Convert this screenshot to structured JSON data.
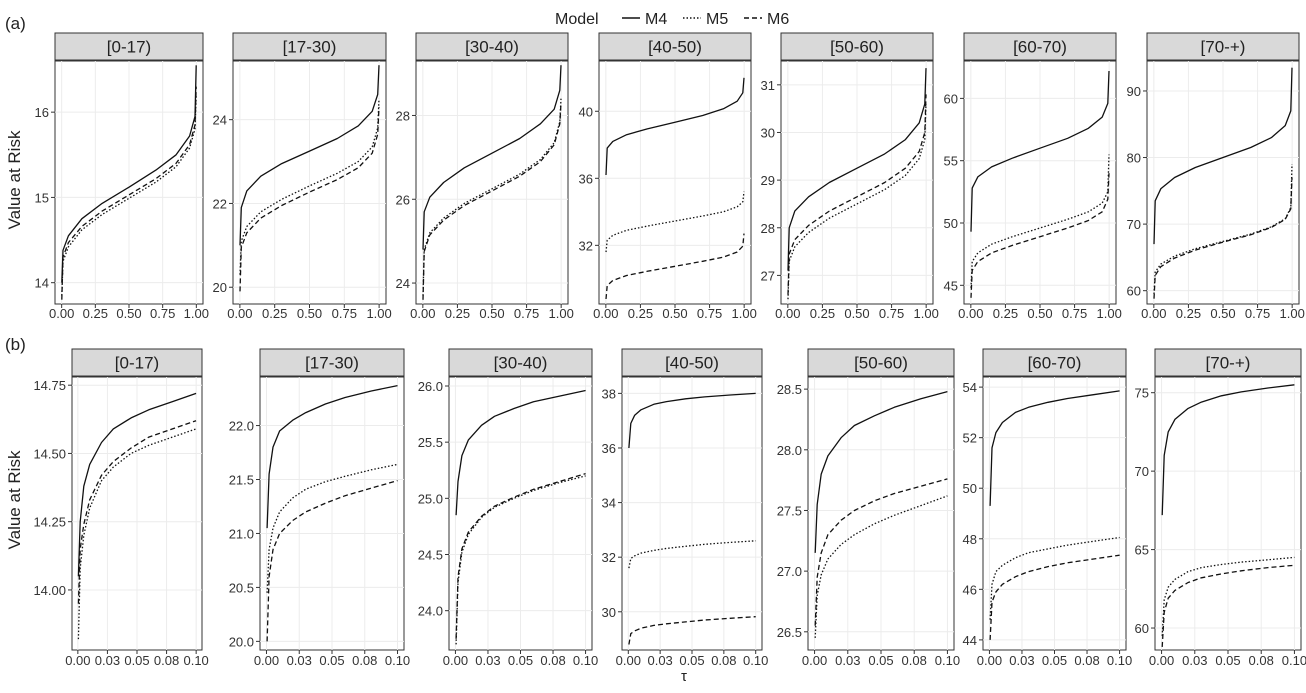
{
  "legend": {
    "title": "Model",
    "items": [
      "M4",
      "M5",
      "M6"
    ]
  },
  "x_axis_label": "τ",
  "chart_data": [
    {
      "row": "(a)",
      "type": "line",
      "ylabel": "Value at Risk",
      "xlabel": "τ",
      "xlim": [
        0,
        1
      ],
      "xticks": [
        "0.00",
        "0.25",
        "0.50",
        "0.75",
        "1.00"
      ],
      "xtick_values": [
        0,
        0.25,
        0.5,
        0.75,
        1.0
      ],
      "series_names": [
        "M4",
        "M5",
        "M6"
      ],
      "x": [
        0.001,
        0.01,
        0.05,
        0.15,
        0.3,
        0.5,
        0.7,
        0.85,
        0.95,
        0.99,
        0.999
      ],
      "panels": [
        {
          "title": "[0-17)",
          "ylim": [
            13.75,
            16.6
          ],
          "yticks": [
            14,
            15,
            16
          ],
          "series": [
            {
              "name": "M4",
              "values": [
                14.0,
                14.38,
                14.55,
                14.75,
                14.93,
                15.12,
                15.32,
                15.5,
                15.72,
                15.95,
                16.55
              ]
            },
            {
              "name": "M5",
              "values": [
                13.85,
                14.25,
                14.42,
                14.62,
                14.8,
                14.99,
                15.18,
                15.36,
                15.58,
                15.8,
                16.2
              ]
            },
            {
              "name": "M6",
              "values": [
                13.8,
                14.3,
                14.47,
                14.66,
                14.84,
                15.03,
                15.22,
                15.4,
                15.62,
                15.85,
                16.3
              ]
            }
          ]
        },
        {
          "title": "[17-30)",
          "ylim": [
            19.6,
            25.4
          ],
          "yticks": [
            20,
            22,
            24
          ],
          "series": [
            {
              "name": "M4",
              "values": [
                21.0,
                21.9,
                22.3,
                22.65,
                22.95,
                23.25,
                23.55,
                23.85,
                24.2,
                24.6,
                25.3
              ]
            },
            {
              "name": "M5",
              "values": [
                20.3,
                21.1,
                21.45,
                21.8,
                22.1,
                22.42,
                22.72,
                23.0,
                23.35,
                23.8,
                24.5
              ]
            },
            {
              "name": "M6",
              "values": [
                19.9,
                20.95,
                21.3,
                21.65,
                21.95,
                22.27,
                22.57,
                22.85,
                23.2,
                23.65,
                24.3
              ]
            }
          ]
        },
        {
          "title": "[30-40)",
          "ylim": [
            23.5,
            29.3
          ],
          "yticks": [
            24,
            26,
            28
          ],
          "series": [
            {
              "name": "M4",
              "values": [
                24.8,
                25.7,
                26.05,
                26.4,
                26.75,
                27.1,
                27.45,
                27.8,
                28.15,
                28.6,
                29.2
              ]
            },
            {
              "name": "M5",
              "values": [
                23.7,
                24.8,
                25.2,
                25.55,
                25.9,
                26.25,
                26.6,
                26.95,
                27.35,
                27.85,
                28.4
              ]
            },
            {
              "name": "M6",
              "values": [
                23.6,
                24.75,
                25.15,
                25.5,
                25.85,
                26.2,
                26.55,
                26.9,
                27.3,
                27.8,
                28.3
              ]
            }
          ]
        },
        {
          "title": "[40-50)",
          "ylim": [
            28.5,
            43.0
          ],
          "yticks": [
            32,
            36,
            40
          ],
          "series": [
            {
              "name": "M4",
              "values": [
                36.2,
                37.8,
                38.2,
                38.6,
                38.95,
                39.35,
                39.75,
                40.15,
                40.6,
                41.1,
                42.0
              ]
            },
            {
              "name": "M5",
              "values": [
                31.6,
                32.3,
                32.6,
                32.9,
                33.15,
                33.45,
                33.75,
                34.0,
                34.3,
                34.6,
                35.2
              ]
            },
            {
              "name": "M6",
              "values": [
                28.8,
                29.6,
                29.9,
                30.2,
                30.45,
                30.75,
                31.05,
                31.3,
                31.6,
                31.95,
                32.7
              ]
            }
          ]
        },
        {
          "title": "[50-60)",
          "ylim": [
            26.4,
            31.5
          ],
          "yticks": [
            27,
            28,
            29,
            30,
            31
          ],
          "series": [
            {
              "name": "M4",
              "values": [
                27.1,
                28.0,
                28.35,
                28.65,
                28.95,
                29.25,
                29.55,
                29.85,
                30.2,
                30.6,
                31.35
              ]
            },
            {
              "name": "M5",
              "values": [
                26.5,
                27.3,
                27.6,
                27.9,
                28.2,
                28.5,
                28.8,
                29.1,
                29.45,
                29.85,
                30.6
              ]
            },
            {
              "name": "M6",
              "values": [
                26.6,
                27.45,
                27.75,
                28.05,
                28.35,
                28.65,
                28.95,
                29.25,
                29.6,
                30.0,
                30.8
              ]
            }
          ]
        },
        {
          "title": "[60-70)",
          "ylim": [
            43.5,
            63.0
          ],
          "yticks": [
            45,
            50,
            55,
            60
          ],
          "series": [
            {
              "name": "M4",
              "values": [
                49.3,
                52.8,
                53.7,
                54.5,
                55.2,
                56.0,
                56.8,
                57.6,
                58.5,
                59.6,
                62.2
              ]
            },
            {
              "name": "M5",
              "values": [
                44.8,
                46.9,
                47.6,
                48.3,
                48.9,
                49.6,
                50.3,
                50.9,
                51.6,
                52.5,
                55.5
              ]
            },
            {
              "name": "M6",
              "values": [
                44.0,
                46.2,
                46.9,
                47.6,
                48.2,
                48.9,
                49.6,
                50.2,
                50.9,
                51.9,
                54.0
              ]
            }
          ]
        },
        {
          "title": "[70-+)",
          "ylim": [
            58.0,
            94.5
          ],
          "yticks": [
            60,
            70,
            80,
            90
          ],
          "series": [
            {
              "name": "M4",
              "values": [
                67.0,
                73.5,
                75.3,
                77.0,
                78.5,
                80.0,
                81.5,
                83.0,
                84.8,
                87.0,
                93.5
              ]
            },
            {
              "name": "M5",
              "values": [
                59.5,
                62.8,
                64.0,
                65.2,
                66.3,
                67.4,
                68.5,
                69.6,
                70.8,
                72.5,
                79.0
              ]
            },
            {
              "name": "M6",
              "values": [
                58.8,
                62.3,
                63.6,
                64.9,
                66.1,
                67.3,
                68.4,
                69.5,
                70.7,
                72.3,
                77.0
              ]
            }
          ]
        }
      ]
    },
    {
      "row": "(b)",
      "type": "line",
      "ylabel": "Value at Risk",
      "xlabel": "τ",
      "xlim": [
        0,
        0.1
      ],
      "xticks": [
        "0.00",
        "0.03",
        "0.05",
        "0.08",
        "0.10"
      ],
      "xtick_values": [
        0,
        0.025,
        0.05,
        0.075,
        0.1
      ],
      "series_names": [
        "M4",
        "M5",
        "M6"
      ],
      "x": [
        0.0005,
        0.002,
        0.005,
        0.01,
        0.02,
        0.03,
        0.045,
        0.06,
        0.08,
        0.1
      ],
      "panels": [
        {
          "title": "[0-17)",
          "ylim": [
            13.78,
            14.78
          ],
          "yticks": [
            14.0,
            14.25,
            14.5,
            14.75
          ],
          "ytick_labels": [
            "14.00",
            "14.25",
            "14.50",
            "14.75"
          ],
          "series": [
            {
              "name": "M4",
              "values": [
                14.05,
                14.25,
                14.38,
                14.46,
                14.54,
                14.59,
                14.63,
                14.66,
                14.69,
                14.72
              ]
            },
            {
              "name": "M5",
              "values": [
                13.82,
                14.08,
                14.2,
                14.3,
                14.4,
                14.45,
                14.5,
                14.53,
                14.56,
                14.59
              ]
            },
            {
              "name": "M6",
              "values": [
                13.95,
                14.15,
                14.24,
                14.33,
                14.42,
                14.47,
                14.52,
                14.56,
                14.59,
                14.62
              ]
            }
          ]
        },
        {
          "title": "[17-30)",
          "ylim": [
            19.92,
            22.45
          ],
          "yticks": [
            20.0,
            20.5,
            21.0,
            21.5,
            22.0
          ],
          "ytick_labels": [
            "20.0",
            "20.5",
            "21.0",
            "21.5",
            "22.0"
          ],
          "series": [
            {
              "name": "M4",
              "values": [
                21.05,
                21.55,
                21.8,
                21.95,
                22.05,
                22.12,
                22.2,
                22.26,
                22.32,
                22.37
              ]
            },
            {
              "name": "M5",
              "values": [
                20.45,
                20.85,
                21.05,
                21.2,
                21.33,
                21.41,
                21.48,
                21.53,
                21.59,
                21.64
              ]
            },
            {
              "name": "M6",
              "values": [
                20.0,
                20.6,
                20.85,
                21.0,
                21.12,
                21.2,
                21.28,
                21.35,
                21.42,
                21.49
              ]
            }
          ]
        },
        {
          "title": "[30-40)",
          "ylim": [
            23.65,
            26.08
          ],
          "yticks": [
            24.0,
            24.5,
            25.0,
            25.5,
            26.0
          ],
          "ytick_labels": [
            "24.0",
            "24.5",
            "25.0",
            "25.5",
            "26.0"
          ],
          "series": [
            {
              "name": "M4",
              "values": [
                24.85,
                25.15,
                25.38,
                25.52,
                25.65,
                25.73,
                25.8,
                25.86,
                25.91,
                25.96
              ]
            },
            {
              "name": "M5",
              "values": [
                23.7,
                24.25,
                24.52,
                24.68,
                24.83,
                24.92,
                25.0,
                25.07,
                25.14,
                25.2
              ]
            },
            {
              "name": "M6",
              "values": [
                23.75,
                24.3,
                24.55,
                24.7,
                24.84,
                24.93,
                25.01,
                25.08,
                25.15,
                25.22
              ]
            }
          ]
        },
        {
          "title": "[40-50)",
          "ylim": [
            28.6,
            38.6
          ],
          "yticks": [
            30,
            32,
            34,
            36,
            38
          ],
          "series": [
            {
              "name": "M4",
              "values": [
                36.0,
                36.9,
                37.2,
                37.4,
                37.6,
                37.7,
                37.8,
                37.87,
                37.94,
                38.0
              ]
            },
            {
              "name": "M5",
              "values": [
                31.6,
                31.95,
                32.05,
                32.15,
                32.25,
                32.32,
                32.4,
                32.47,
                32.54,
                32.6
              ]
            },
            {
              "name": "M6",
              "values": [
                28.8,
                29.2,
                29.3,
                29.4,
                29.5,
                29.56,
                29.63,
                29.7,
                29.76,
                29.82
              ]
            }
          ]
        },
        {
          "title": "[50-60)",
          "ylim": [
            26.35,
            28.6
          ],
          "yticks": [
            26.5,
            27.0,
            27.5,
            28.0,
            28.5
          ],
          "ytick_labels": [
            "26.5",
            "27.0",
            "27.5",
            "28.0",
            "28.5"
          ],
          "series": [
            {
              "name": "M4",
              "values": [
                27.15,
                27.55,
                27.8,
                27.95,
                28.1,
                28.2,
                28.28,
                28.35,
                28.42,
                28.48
              ]
            },
            {
              "name": "M5",
              "values": [
                26.45,
                26.8,
                26.97,
                27.1,
                27.22,
                27.3,
                27.39,
                27.46,
                27.54,
                27.62
              ]
            },
            {
              "name": "M6",
              "values": [
                26.55,
                26.95,
                27.15,
                27.3,
                27.42,
                27.5,
                27.58,
                27.64,
                27.7,
                27.76
              ]
            }
          ]
        },
        {
          "title": "[60-70)",
          "ylim": [
            43.6,
            54.4
          ],
          "yticks": [
            44,
            46,
            48,
            50,
            52,
            54
          ],
          "series": [
            {
              "name": "M4",
              "values": [
                49.3,
                51.6,
                52.2,
                52.6,
                53.0,
                53.2,
                53.4,
                53.55,
                53.7,
                53.85
              ]
            },
            {
              "name": "M5",
              "values": [
                44.8,
                46.2,
                46.7,
                46.95,
                47.25,
                47.45,
                47.6,
                47.75,
                47.9,
                48.05
              ]
            },
            {
              "name": "M6",
              "values": [
                44.0,
                45.5,
                45.9,
                46.2,
                46.5,
                46.7,
                46.9,
                47.05,
                47.2,
                47.35
              ]
            }
          ]
        },
        {
          "title": "[70-+)",
          "ylim": [
            58.6,
            76.0
          ],
          "yticks": [
            60,
            65,
            70,
            75
          ],
          "series": [
            {
              "name": "M4",
              "values": [
                67.2,
                71.0,
                72.5,
                73.3,
                74.0,
                74.4,
                74.8,
                75.05,
                75.3,
                75.5
              ]
            },
            {
              "name": "M5",
              "values": [
                59.5,
                61.8,
                62.6,
                63.1,
                63.6,
                63.85,
                64.05,
                64.2,
                64.35,
                64.5
              ]
            },
            {
              "name": "M6",
              "values": [
                58.8,
                61.0,
                61.9,
                62.4,
                62.9,
                63.2,
                63.45,
                63.65,
                63.85,
                64.0
              ]
            }
          ]
        }
      ]
    }
  ]
}
